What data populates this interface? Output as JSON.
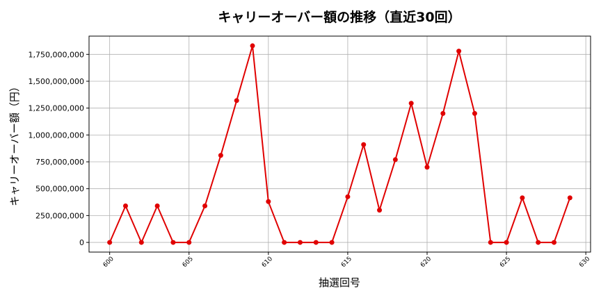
{
  "chart_data": {
    "type": "line",
    "title": "キャリーオーバー額の推移（直近30回）",
    "xlabel": "抽選回号",
    "ylabel": "キャリーオーバー額（円）",
    "xlim": [
      598.7,
      630.3
    ],
    "ylim": [
      -90000000,
      1920000000
    ],
    "grid": true,
    "xticks": [
      600,
      605,
      610,
      615,
      620,
      625,
      630
    ],
    "yticks": [
      0,
      250000000,
      500000000,
      750000000,
      1000000000,
      1250000000,
      1500000000,
      1750000000
    ],
    "ytick_labels": [
      "0",
      "250,000,000",
      "500,000,000",
      "750,000,000",
      "1,000,000,000",
      "1,250,000,000",
      "1,500,000,000",
      "1,750,000,000"
    ],
    "series_color": "#e00000",
    "x": [
      600,
      601,
      602,
      603,
      604,
      605,
      606,
      607,
      608,
      609,
      610,
      611,
      612,
      613,
      614,
      615,
      616,
      617,
      618,
      619,
      620,
      621,
      622,
      623,
      624,
      625,
      626,
      627,
      628,
      629
    ],
    "values": [
      0,
      340000000,
      0,
      340000000,
      0,
      0,
      340000000,
      810000000,
      1320000000,
      1830000000,
      380000000,
      0,
      0,
      0,
      0,
      425000000,
      910000000,
      300000000,
      770000000,
      1295000000,
      700000000,
      1200000000,
      1780000000,
      1200000000,
      0,
      0,
      415000000,
      0,
      0,
      415000000
    ]
  }
}
